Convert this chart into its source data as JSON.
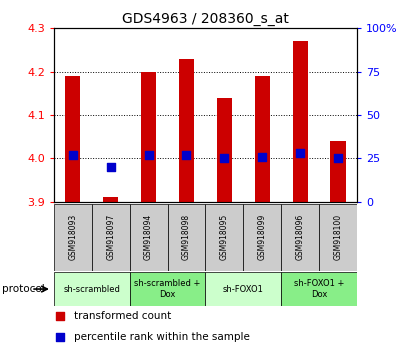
{
  "title": "GDS4963 / 208360_s_at",
  "samples": [
    "GSM918093",
    "GSM918097",
    "GSM918094",
    "GSM918098",
    "GSM918095",
    "GSM918099",
    "GSM918096",
    "GSM918100"
  ],
  "transformed_counts": [
    4.19,
    3.91,
    4.2,
    4.23,
    4.14,
    4.19,
    4.27,
    4.04
  ],
  "percentile_ranks": [
    27,
    20,
    27,
    27,
    25,
    26,
    28,
    25
  ],
  "bar_bottom": 3.9,
  "ylim": [
    3.9,
    4.3
  ],
  "y2lim": [
    0,
    100
  ],
  "yticks": [
    3.9,
    4.0,
    4.1,
    4.2,
    4.3
  ],
  "y2ticks": [
    0,
    25,
    50,
    75,
    100
  ],
  "y2ticklabels": [
    "0",
    "25",
    "50",
    "75",
    "100%"
  ],
  "bar_color": "#cc0000",
  "dot_color": "#0000cc",
  "groups": [
    {
      "label": "sh-scrambled",
      "start": 0,
      "end": 2,
      "color": "#ccffcc"
    },
    {
      "label": "sh-scrambled +\nDox",
      "start": 2,
      "end": 4,
      "color": "#88ee88"
    },
    {
      "label": "sh-FOXO1",
      "start": 4,
      "end": 6,
      "color": "#ccffcc"
    },
    {
      "label": "sh-FOXO1 +\nDox",
      "start": 6,
      "end": 8,
      "color": "#88ee88"
    }
  ],
  "protocol_label": "protocol",
  "sample_box_color": "#cccccc",
  "bar_width": 0.4,
  "dot_size": 28
}
